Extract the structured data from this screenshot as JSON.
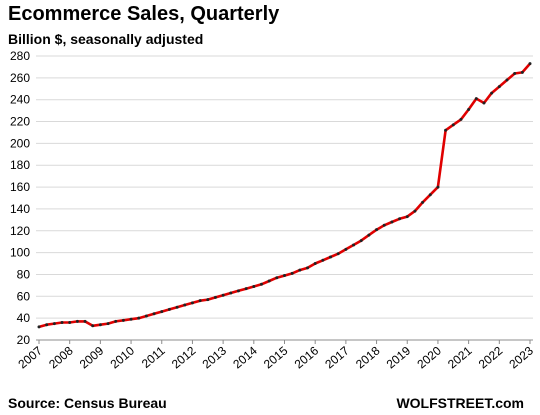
{
  "chart_data": {
    "type": "line",
    "title": "Ecommerce Sales, Quarterly",
    "subtitle": "Billion $, seasonally adjusted",
    "source": "Source: Census Bureau",
    "brand": "WOLFSTREET.com",
    "ylim": [
      20,
      280
    ],
    "yticks": [
      20,
      40,
      60,
      80,
      100,
      120,
      140,
      160,
      180,
      200,
      220,
      240,
      260,
      280
    ],
    "xticks": [
      "2007",
      "2008",
      "2009",
      "2010",
      "2011",
      "2012",
      "2013",
      "2014",
      "2015",
      "2016",
      "2017",
      "2018",
      "2019",
      "2020",
      "2021",
      "2022",
      "2023"
    ],
    "grid": true,
    "line_color": "#e00000",
    "marker_color": "#222222",
    "series": [
      {
        "x": [
          "2007Q1",
          "2007Q2",
          "2007Q3",
          "2007Q4",
          "2008Q1",
          "2008Q2",
          "2008Q3",
          "2008Q4",
          "2009Q1",
          "2009Q2",
          "2009Q3",
          "2009Q4",
          "2010Q1",
          "2010Q2",
          "2010Q3",
          "2010Q4",
          "2011Q1",
          "2011Q2",
          "2011Q3",
          "2011Q4",
          "2012Q1",
          "2012Q2",
          "2012Q3",
          "2012Q4",
          "2013Q1",
          "2013Q2",
          "2013Q3",
          "2013Q4",
          "2014Q1",
          "2014Q2",
          "2014Q3",
          "2014Q4",
          "2015Q1",
          "2015Q2",
          "2015Q3",
          "2015Q4",
          "2016Q1",
          "2016Q2",
          "2016Q3",
          "2016Q4",
          "2017Q1",
          "2017Q2",
          "2017Q3",
          "2017Q4",
          "2018Q1",
          "2018Q2",
          "2018Q3",
          "2018Q4",
          "2019Q1",
          "2019Q2",
          "2019Q3",
          "2019Q4",
          "2020Q1",
          "2020Q2",
          "2020Q3",
          "2020Q4",
          "2021Q1",
          "2021Q2",
          "2021Q3",
          "2021Q4",
          "2022Q1",
          "2022Q2",
          "2022Q3",
          "2022Q4",
          "2023Q1"
        ],
        "values": [
          32,
          34,
          35,
          36,
          36,
          37,
          37,
          33,
          34,
          35,
          37,
          38,
          39,
          40,
          42,
          44,
          46,
          48,
          50,
          52,
          54,
          56,
          57,
          59,
          61,
          63,
          65,
          67,
          69,
          71,
          74,
          77,
          79,
          81,
          84,
          86,
          90,
          93,
          96,
          99,
          103,
          107,
          111,
          116,
          121,
          125,
          128,
          131,
          133,
          138,
          146,
          153,
          160,
          212,
          217,
          222,
          231,
          241,
          237,
          246,
          252,
          258,
          264,
          265,
          273
        ]
      }
    ]
  }
}
